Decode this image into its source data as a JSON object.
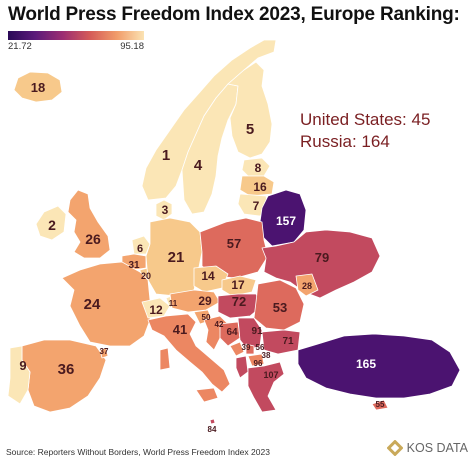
{
  "title": "World Press Freedom Index 2023, Europe Ranking:",
  "legend": {
    "min": "21.72",
    "max": "95.18"
  },
  "notes": {
    "us": "United States: 45",
    "russia": "Russia: 164"
  },
  "source": "Source: Reporters Without Borders, World Press Freedom Index 2023",
  "brand": "KOS DATA",
  "colors": {
    "top": "#fbe6b6",
    "high": "#f7c98b",
    "mid_high": "#f3a46e",
    "mid": "#ec8762",
    "mid_low": "#dd6a5d",
    "low": "#c24a5f",
    "very_low": "#8e2c74",
    "lowest": "#4b1370",
    "sea": "#ffffff"
  },
  "countries": [
    {
      "name": "Iceland",
      "rank": "18"
    },
    {
      "name": "Norway",
      "rank": "1"
    },
    {
      "name": "Sweden",
      "rank": "4"
    },
    {
      "name": "Finland",
      "rank": "5"
    },
    {
      "name": "Denmark",
      "rank": "3"
    },
    {
      "name": "Estonia",
      "rank": "8"
    },
    {
      "name": "Latvia",
      "rank": "16"
    },
    {
      "name": "Lithuania",
      "rank": "7"
    },
    {
      "name": "Belarus",
      "rank": "157"
    },
    {
      "name": "Ireland",
      "rank": "2"
    },
    {
      "name": "United Kingdom",
      "rank": "26"
    },
    {
      "name": "Netherlands",
      "rank": "6"
    },
    {
      "name": "Belgium",
      "rank": "31"
    },
    {
      "name": "Luxembourg",
      "rank": "20"
    },
    {
      "name": "Germany",
      "rank": "21"
    },
    {
      "name": "Poland",
      "rank": "57"
    },
    {
      "name": "Ukraine",
      "rank": "79"
    },
    {
      "name": "Czechia",
      "rank": "14"
    },
    {
      "name": "Slovakia",
      "rank": "17"
    },
    {
      "name": "Moldova",
      "rank": "28"
    },
    {
      "name": "France",
      "rank": "24"
    },
    {
      "name": "Switzerland",
      "rank": "12"
    },
    {
      "name": "Liechtenstein",
      "rank": "11"
    },
    {
      "name": "Austria",
      "rank": "29"
    },
    {
      "name": "Hungary",
      "rank": "72"
    },
    {
      "name": "Romania",
      "rank": "53"
    },
    {
      "name": "Slovenia",
      "rank": "50"
    },
    {
      "name": "Croatia",
      "rank": "42"
    },
    {
      "name": "Bosnia and Herzegovina",
      "rank": "64"
    },
    {
      "name": "Serbia",
      "rank": "91"
    },
    {
      "name": "Bulgaria",
      "rank": "71"
    },
    {
      "name": "Montenegro",
      "rank": "39"
    },
    {
      "name": "Kosovo",
      "rank": "56"
    },
    {
      "name": "North Macedonia",
      "rank": "38"
    },
    {
      "name": "Albania",
      "rank": "96"
    },
    {
      "name": "Greece",
      "rank": "107"
    },
    {
      "name": "Italy",
      "rank": "41"
    },
    {
      "name": "Spain",
      "rank": "36"
    },
    {
      "name": "Portugal",
      "rank": "9"
    },
    {
      "name": "Andorra",
      "rank": "37"
    },
    {
      "name": "Turkey",
      "rank": "165"
    },
    {
      "name": "Cyprus",
      "rank": "55"
    },
    {
      "name": "Malta",
      "rank": "84"
    }
  ]
}
